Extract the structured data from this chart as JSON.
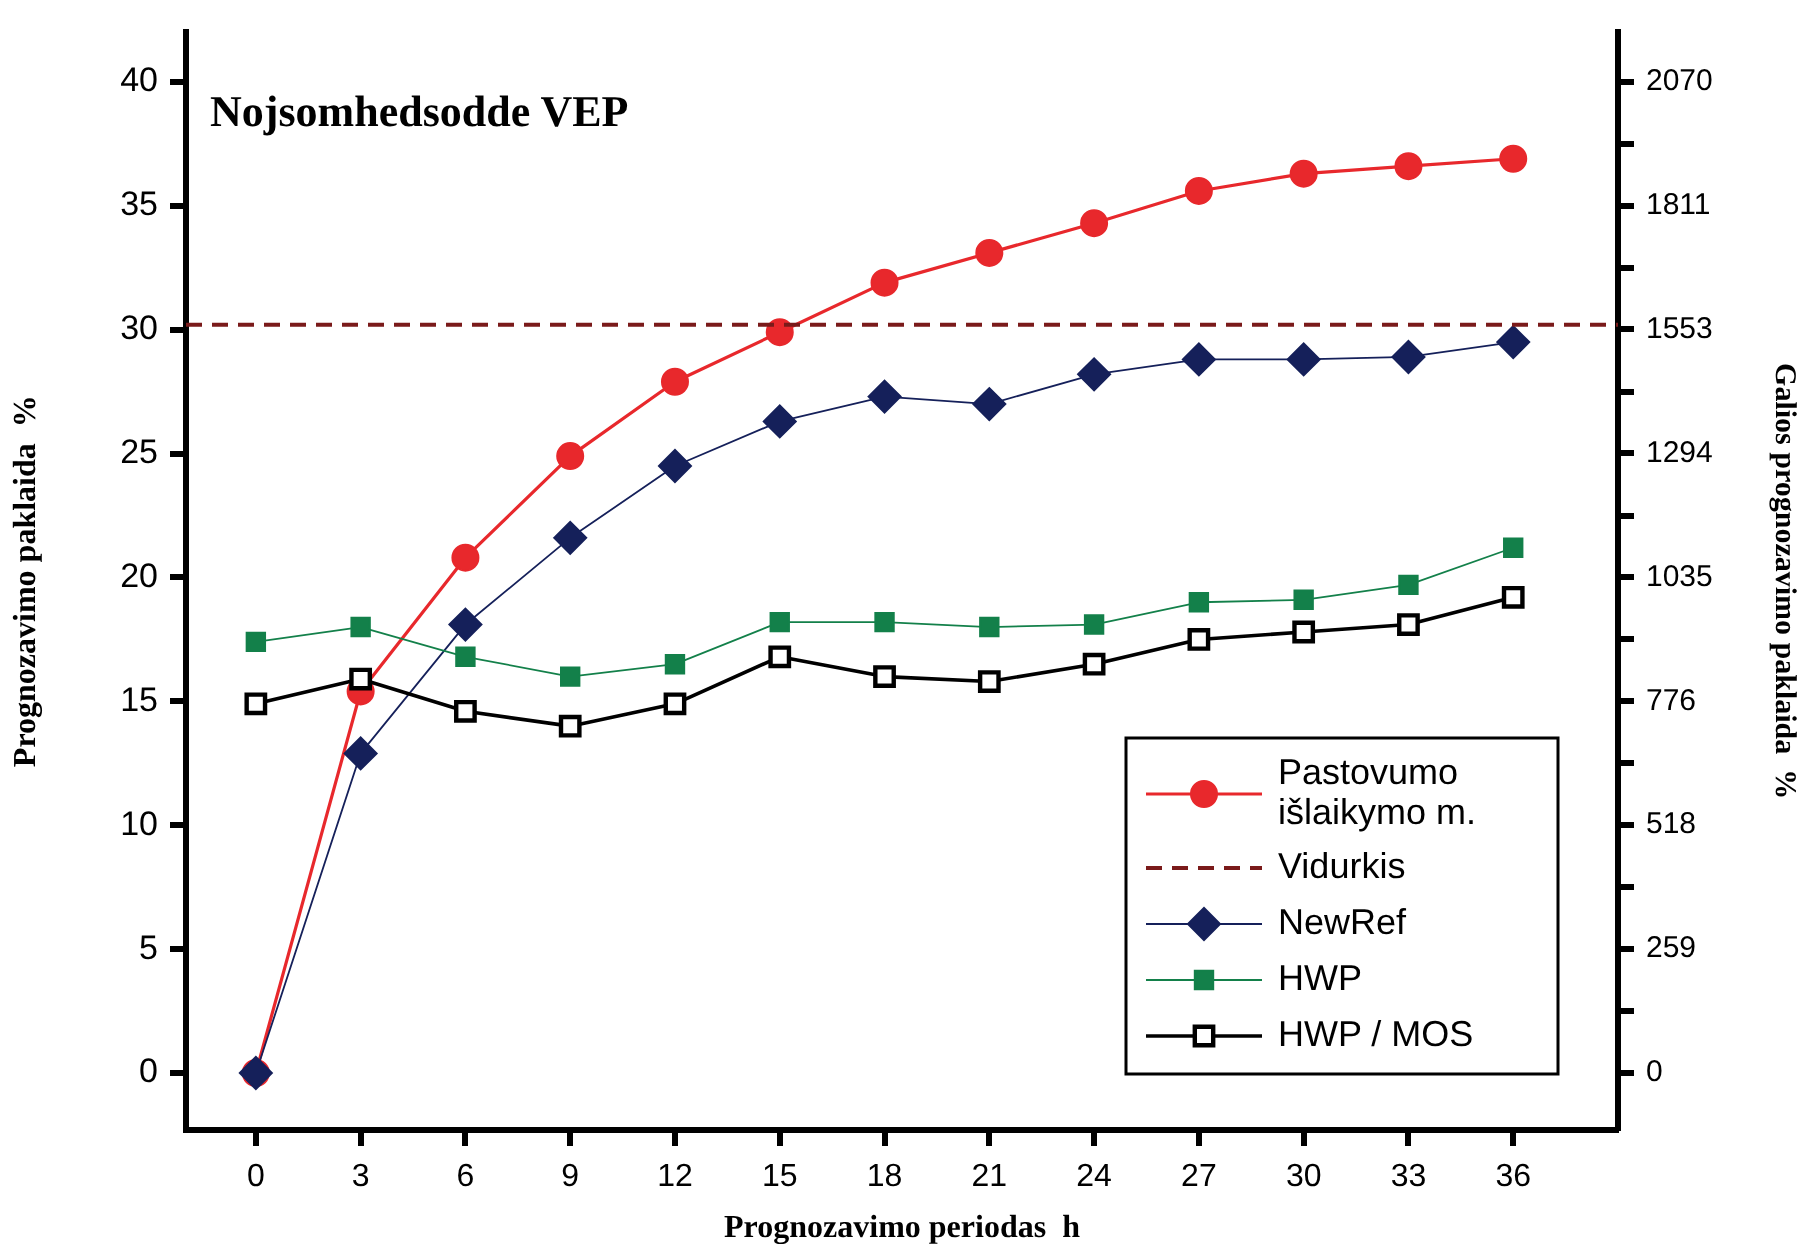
{
  "chart_data": {
    "type": "line",
    "title": "Nojsomhedsodde VEP",
    "xlabel": "Prognozavimo periodas  h",
    "ylabel": "Prognozavimo paklaida  %",
    "y2label": "Galios prognozavimo paklaida  %",
    "x": [
      0,
      3,
      6,
      9,
      12,
      15,
      18,
      21,
      24,
      27,
      30,
      33,
      36
    ],
    "xlim": [
      -2,
      39
    ],
    "xticks": [
      0,
      3,
      6,
      9,
      12,
      15,
      18,
      21,
      24,
      27,
      30,
      33,
      36
    ],
    "ylim": [
      -2.3,
      42
    ],
    "yticks": [
      0,
      5,
      10,
      15,
      20,
      25,
      30,
      35,
      40
    ],
    "y2lim": [
      -119,
      2173.5
    ],
    "y2ticks": [
      0,
      {
        "value": 129.4,
        "label": null
      },
      259,
      {
        "value": 388.1,
        "label": null
      },
      518,
      {
        "value": 647,
        "label": null
      },
      776,
      {
        "value": 905.6,
        "label": null
      },
      1035,
      {
        "value": 1164.4,
        "label": null
      },
      1294,
      {
        "value": 1423.1,
        "label": null
      },
      1553,
      {
        "value": 1682,
        "label": null
      },
      1811,
      {
        "value": 1940.6,
        "label": null
      },
      2070
    ],
    "grid": false,
    "legend": "bottom right",
    "ref_lines": [
      {
        "axis": "y",
        "value": 30.2,
        "label": "Vidurkis",
        "color": "#7a1a1a",
        "line_style": "dashed"
      }
    ],
    "series": [
      {
        "name": "Pastovumo išlaikymo m.",
        "color": "#e8282c",
        "marker": "circle",
        "values": [
          0,
          15.4,
          20.8,
          24.9,
          27.9,
          29.9,
          31.9,
          33.1,
          34.3,
          35.6,
          36.3,
          36.6,
          36.9
        ]
      },
      {
        "name": "NewRef",
        "color": "#15205a",
        "marker": "diamond",
        "values": [
          0,
          12.9,
          18.1,
          21.6,
          24.5,
          26.3,
          27.3,
          27.0,
          28.2,
          28.8,
          28.8,
          28.9,
          29.5
        ]
      },
      {
        "name": "HWP",
        "color": "#13804a",
        "marker": "square",
        "values": [
          17.4,
          18.0,
          16.8,
          16.0,
          16.5,
          18.2,
          18.2,
          18.0,
          18.1,
          19.0,
          19.1,
          19.7,
          21.2
        ]
      },
      {
        "name": "HWP / MOS",
        "color": "#000000",
        "marker": "square-open",
        "values": [
          14.9,
          15.9,
          14.6,
          14.0,
          14.9,
          16.8,
          16.0,
          15.8,
          16.5,
          17.5,
          17.8,
          18.1,
          19.2
        ]
      }
    ]
  }
}
